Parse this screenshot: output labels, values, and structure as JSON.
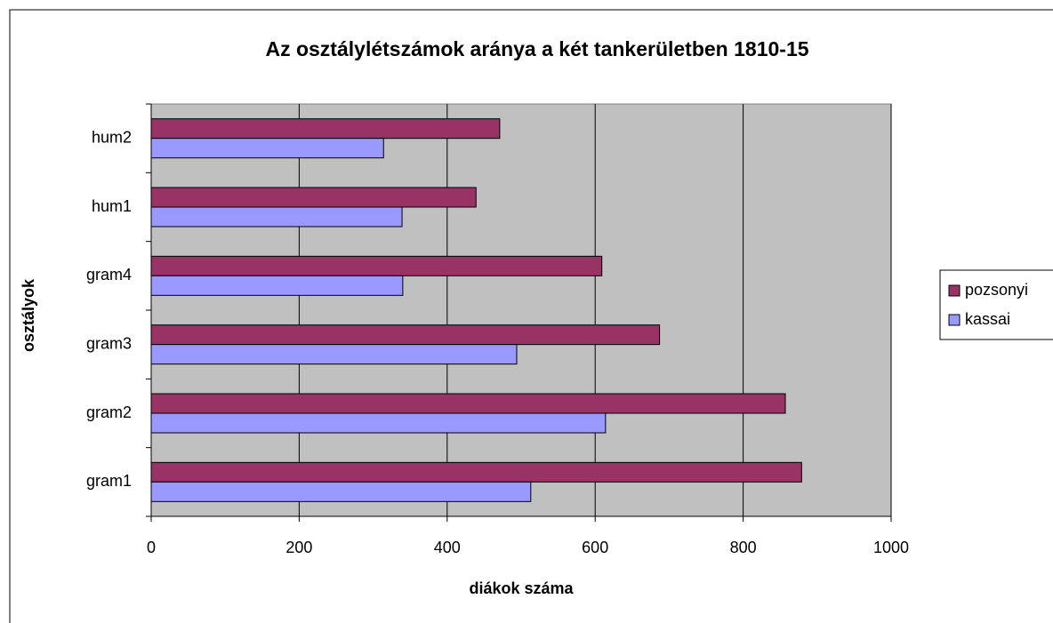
{
  "chart_data": {
    "type": "bar",
    "orientation": "horizontal",
    "title": "Az osztálylétszámok aránya a két tankerületben 1810-15",
    "x_label": "diákok száma",
    "y_label": "osztályok",
    "categories": [
      "gram1",
      "gram2",
      "gram3",
      "gram4",
      "hum1",
      "hum2"
    ],
    "series": [
      {
        "name": "pozsonyi",
        "color": "#993366",
        "values": [
          879,
          857,
          687,
          609,
          439,
          471
        ]
      },
      {
        "name": "kassai",
        "color": "#9999ff",
        "values": [
          513,
          614,
          494,
          340,
          339,
          314
        ]
      }
    ],
    "xlim": [
      0,
      1000
    ],
    "xticks": [
      0,
      200,
      400,
      600,
      800,
      1000
    ],
    "grid": true,
    "legend": "right",
    "plot_background": "#c0c0c0"
  }
}
